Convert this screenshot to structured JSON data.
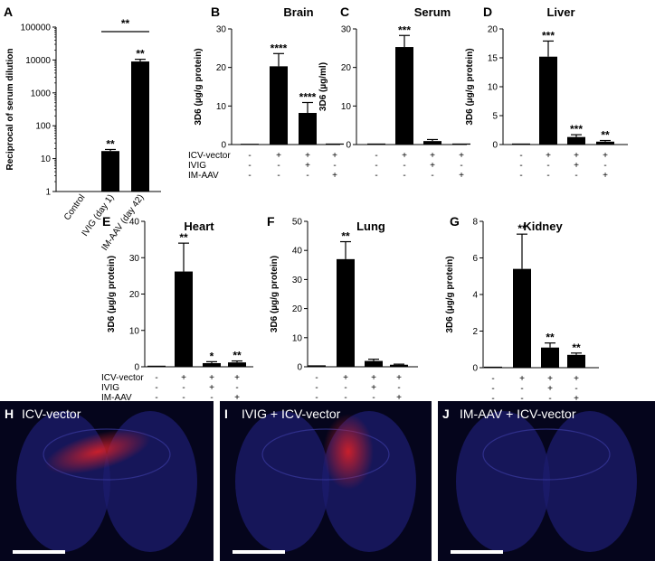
{
  "chart_data": [
    {
      "panel": "A",
      "type": "bar",
      "scale": "log",
      "title": "",
      "ylabel": "Reciprocal of serum dilution",
      "yticks": [
        "1",
        "10",
        "100",
        "1000",
        "10000",
        "100000"
      ],
      "ylim": [
        1,
        100000
      ],
      "categories": [
        "Control",
        "IVIG (day 1)",
        "IM-AAV (day 42)"
      ],
      "values": [
        1,
        17,
        9000
      ],
      "errors": [
        0,
        2,
        1500
      ],
      "significance": [
        "",
        "**",
        "**"
      ],
      "bracket": {
        "from": 1,
        "to": 2,
        "label": "**"
      }
    },
    {
      "panel": "B",
      "type": "bar",
      "title": "Brain",
      "ylabel": "3D6 (µg/g protein)",
      "yticks": [
        "0",
        "10",
        "20",
        "30"
      ],
      "ylim": [
        0,
        30
      ],
      "values": [
        0.2,
        20.3,
        8.2,
        0
      ],
      "errors": [
        0,
        3.3,
        2.7,
        0
      ],
      "significance": [
        "",
        "****",
        "****",
        ""
      ],
      "conditions": {
        "labels": [
          "ICV-vector",
          "IVIG",
          "IM-AAV"
        ],
        "rows": [
          [
            "-",
            "+",
            "+",
            "+"
          ],
          [
            "-",
            "-",
            "+",
            "-"
          ],
          [
            "-",
            "-",
            "-",
            "+"
          ]
        ]
      }
    },
    {
      "panel": "C",
      "type": "bar",
      "title": "Serum",
      "ylabel": "3D6 (µg/ml)",
      "yticks": [
        "0",
        "10",
        "20",
        "30"
      ],
      "ylim": [
        0,
        30
      ],
      "values": [
        0,
        25.3,
        0.9,
        0
      ],
      "errors": [
        0,
        3,
        0.4,
        0
      ],
      "significance": [
        "",
        "***",
        "",
        ""
      ],
      "conditions": {
        "rows": [
          [
            "-",
            "+",
            "+",
            "+"
          ],
          [
            "-",
            "-",
            "+",
            "-"
          ],
          [
            "-",
            "-",
            "-",
            "+"
          ]
        ]
      }
    },
    {
      "panel": "D",
      "type": "bar",
      "title": "Liver",
      "ylabel": "3D6 (µg/g protein)",
      "yticks": [
        "0",
        "5",
        "10",
        "15",
        "20"
      ],
      "ylim": [
        0,
        20
      ],
      "values": [
        0,
        15.2,
        1.3,
        0.5
      ],
      "errors": [
        0,
        2.7,
        0.4,
        0.2
      ],
      "significance": [
        "",
        "***",
        "***",
        "**"
      ],
      "conditions": {
        "rows": [
          [
            "-",
            "+",
            "+",
            "+"
          ],
          [
            "-",
            "-",
            "+",
            "-"
          ],
          [
            "-",
            "-",
            "-",
            "+"
          ]
        ]
      }
    },
    {
      "panel": "E",
      "type": "bar",
      "title": "Heart",
      "ylabel": "3D6 (µg/g protein)",
      "yticks": [
        "0",
        "10",
        "20",
        "30",
        "40"
      ],
      "ylim": [
        0,
        40
      ],
      "values": [
        0.3,
        26.2,
        1,
        1.2
      ],
      "errors": [
        0,
        7.8,
        0.4,
        0.4
      ],
      "significance": [
        "",
        "**",
        "*",
        "**"
      ],
      "conditions": {
        "labels": [
          "ICV-vector",
          "IVIG",
          "IM-AAV"
        ],
        "rows": [
          [
            "-",
            "+",
            "+",
            "+"
          ],
          [
            "-",
            "-",
            "+",
            "-"
          ],
          [
            "-",
            "-",
            "-",
            "+"
          ]
        ]
      }
    },
    {
      "panel": "F",
      "type": "bar",
      "title": "Lung",
      "ylabel": "3D6 (µg/g protein)",
      "yticks": [
        "0",
        "10",
        "20",
        "30",
        "40",
        "50"
      ],
      "ylim": [
        0,
        50
      ],
      "values": [
        0.5,
        37,
        2,
        0.7
      ],
      "errors": [
        0,
        6,
        0.6,
        0.2
      ],
      "significance": [
        "",
        "**",
        "",
        ""
      ],
      "conditions": {
        "rows": [
          [
            "-",
            "+",
            "+",
            "+"
          ],
          [
            "-",
            "-",
            "+",
            "-"
          ],
          [
            "-",
            "-",
            "-",
            "+"
          ]
        ]
      }
    },
    {
      "panel": "G",
      "type": "bar",
      "title": "Kidney",
      "ylabel": "3D6 (µg/g protein)",
      "yticks": [
        "0",
        "2",
        "4",
        "6",
        "8"
      ],
      "ylim": [
        0,
        8
      ],
      "values": [
        0,
        5.4,
        1.1,
        0.7
      ],
      "errors": [
        0,
        1.9,
        0.25,
        0.1
      ],
      "significance": [
        "",
        "**",
        "**",
        "**"
      ],
      "conditions": {
        "rows": [
          [
            "-",
            "+",
            "+",
            "+"
          ],
          [
            "-",
            "-",
            "+",
            "-"
          ],
          [
            "-",
            "-",
            "-",
            "+"
          ]
        ]
      }
    }
  ],
  "micrographs": [
    {
      "panel": "H",
      "label": "ICV-vector"
    },
    {
      "panel": "I",
      "label": "IVIG + ICV-vector"
    },
    {
      "panel": "J",
      "label": "IM-AAV + ICV-vector"
    }
  ],
  "colors": {
    "bar": "#000000",
    "micro_background": "#05051c",
    "tissue": "#1c1c6e",
    "red_signal": "#d0202a",
    "scale_bar": "#ffffff"
  }
}
